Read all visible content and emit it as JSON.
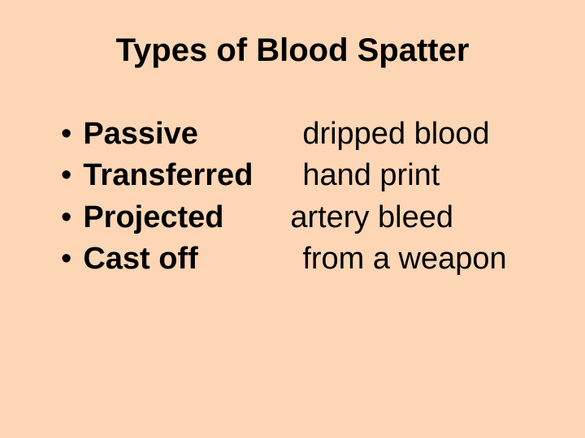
{
  "slide": {
    "background_color": "#fdd6b6",
    "text_color": "#000000",
    "title": "Types of Blood Spatter",
    "title_fontsize": 40,
    "body_fontsize": 38,
    "bullets": [
      {
        "term": "Passive",
        "desc": "dripped blood"
      },
      {
        "term": "Transferred",
        "desc": "hand print"
      },
      {
        "term": "Projected",
        "desc": "artery bleed"
      },
      {
        "term": "Cast off",
        "desc": "from a weapon"
      }
    ],
    "bullet_marker": "•"
  }
}
